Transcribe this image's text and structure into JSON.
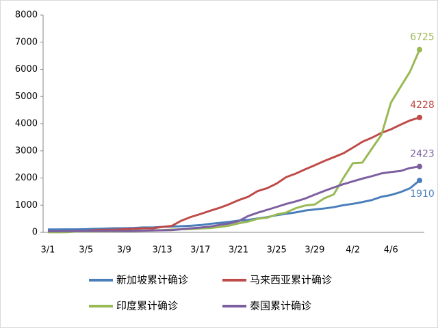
{
  "chart_data": {
    "type": "line",
    "categories": [
      "3/1",
      null,
      null,
      null,
      "3/5",
      null,
      null,
      null,
      "3/9",
      null,
      null,
      null,
      "3/13",
      null,
      null,
      null,
      "3/17",
      null,
      null,
      null,
      "3/21",
      null,
      null,
      null,
      "3/25",
      null,
      null,
      null,
      "3/29",
      null,
      null,
      null,
      "4/2",
      null,
      null,
      null,
      "4/6",
      null,
      null,
      null
    ],
    "series": [
      {
        "name": "新加坡累计确诊",
        "color": "#4a7ebb",
        "values": [
          106,
          108,
          110,
          110,
          117,
          130,
          138,
          150,
          150,
          160,
          178,
          178,
          200,
          212,
          226,
          243,
          266,
          313,
          345,
          385,
          432,
          455,
          509,
          558,
          631,
          683,
          732,
          802,
          844,
          879,
          926,
          1000,
          1049,
          1114,
          1189,
          1309,
          1375,
          1481,
          1623,
          1910
        ]
      },
      {
        "name": "马来西亚累计确诊",
        "color": "#be4b48",
        "values": [
          29,
          29,
          36,
          50,
          50,
          83,
          93,
          99,
          117,
          129,
          149,
          149,
          197,
          238,
          428,
          566,
          673,
          790,
          900,
          1030,
          1183,
          1306,
          1518,
          1624,
          1796,
          2031,
          2161,
          2320,
          2470,
          2626,
          2766,
          2908,
          3116,
          3333,
          3483,
          3662,
          3793,
          3963,
          4119,
          4228
        ]
      },
      {
        "name": "印度累计确诊",
        "color": "#98b954",
        "values": [
          3,
          3,
          5,
          28,
          30,
          31,
          34,
          39,
          43,
          56,
          62,
          73,
          82,
          102,
          113,
          119,
          142,
          156,
          194,
          244,
          330,
          396,
          499,
          536,
          657,
          727,
          887,
          987,
          1024,
          1251,
          1397,
          1998,
          2543,
          2567,
          3082,
          3588,
          4778,
          5351,
          5916,
          6725
        ]
      },
      {
        "name": "泰国累计确诊",
        "color": "#7d5fa0",
        "values": [
          42,
          42,
          43,
          43,
          47,
          48,
          50,
          50,
          50,
          53,
          59,
          70,
          75,
          82,
          114,
          147,
          177,
          212,
          272,
          322,
          411,
          599,
          721,
          827,
          934,
          1045,
          1136,
          1245,
          1388,
          1524,
          1651,
          1771,
          1875,
          1978,
          2067,
          2169,
          2220,
          2258,
          2369,
          2423
        ]
      }
    ],
    "ylim": [
      0,
      8000
    ],
    "yticks": [
      0,
      1000,
      2000,
      3000,
      4000,
      5000,
      6000,
      7000,
      8000
    ],
    "grid": false
  }
}
